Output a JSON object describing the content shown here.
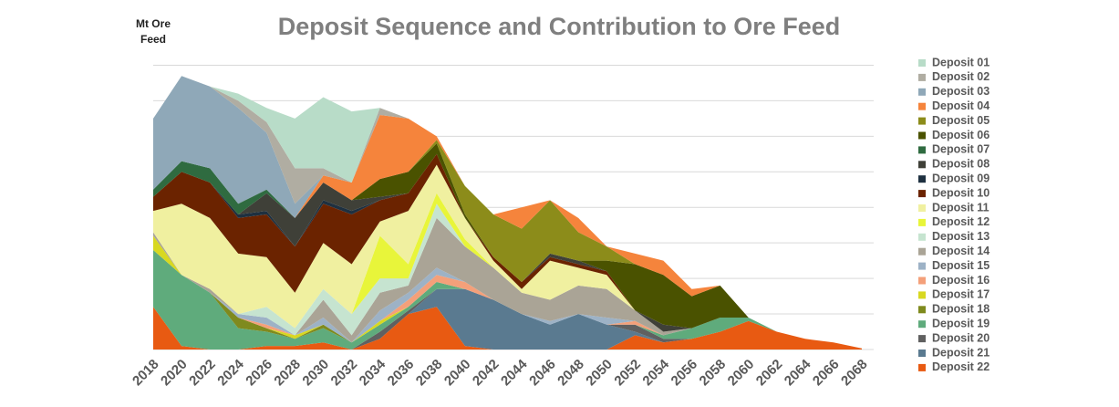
{
  "chart_data": {
    "type": "stacked_area",
    "title": "Deposit Sequence and Contribution to Ore Feed",
    "y_label": "Mt Ore Feed",
    "categories": [
      "2018",
      "2020",
      "2022",
      "2024",
      "2026",
      "2028",
      "2030",
      "2032",
      "2034",
      "2036",
      "2038",
      "2040",
      "2042",
      "2044",
      "2046",
      "2048",
      "2050",
      "2052",
      "2054",
      "2056",
      "2058",
      "2060",
      "2062",
      "2064",
      "2066",
      "2068"
    ],
    "ylim": [
      0,
      85
    ],
    "yticks": [
      0,
      10,
      20,
      30,
      40,
      50,
      60,
      70,
      80
    ],
    "grid": true,
    "legend": "right",
    "series": [
      {
        "name": "Deposit 01",
        "color": "#b8dcc8",
        "values": [
          0,
          0,
          0,
          2,
          4,
          14,
          20,
          20,
          0,
          0,
          0,
          0,
          0,
          0,
          0,
          0,
          0,
          0,
          0,
          0,
          0,
          0,
          0,
          0,
          0,
          0
        ]
      },
      {
        "name": "Deposit 02",
        "color": "#b0ada2",
        "values": [
          0,
          0,
          0,
          2,
          3,
          10,
          2,
          0,
          2,
          0,
          0,
          0,
          0,
          0,
          0,
          0,
          0,
          0,
          0,
          0,
          0,
          0,
          0,
          0,
          0,
          0
        ]
      },
      {
        "name": "Deposit 03",
        "color": "#8fa8b8",
        "values": [
          20,
          24,
          23,
          27,
          16,
          4,
          0,
          0,
          0,
          0,
          0,
          0,
          0,
          0,
          0,
          0,
          0,
          0,
          0,
          0,
          0,
          0,
          0,
          0,
          0,
          0
        ]
      },
      {
        "name": "Deposit 04",
        "color": "#f5843c",
        "values": [
          0,
          0,
          0,
          0,
          0,
          0,
          2,
          5,
          18,
          15,
          1,
          0,
          0,
          6,
          0,
          4,
          0,
          3,
          4,
          2,
          0,
          0,
          0,
          0,
          0,
          0
        ]
      },
      {
        "name": "Deposit 05",
        "color": "#8c8c1a",
        "values": [
          0,
          0,
          0,
          0,
          0,
          0,
          0,
          0,
          0,
          0,
          1,
          8,
          12,
          15,
          15,
          8,
          4,
          0,
          0,
          0,
          0,
          0,
          0,
          0,
          0,
          0
        ]
      },
      {
        "name": "Deposit 06",
        "color": "#4a5200",
        "values": [
          0,
          0,
          0,
          0,
          0,
          0,
          0,
          0,
          5,
          6,
          3,
          1,
          0,
          0,
          0,
          0,
          3,
          13,
          14,
          9,
          9,
          0,
          0,
          0,
          0,
          0
        ]
      },
      {
        "name": "Deposit 07",
        "color": "#2f6b40",
        "values": [
          2,
          3,
          4,
          3,
          1,
          0,
          0,
          0,
          0,
          0,
          0,
          0,
          0,
          0,
          0,
          0,
          0,
          0,
          0,
          0,
          0,
          0,
          0,
          0,
          0,
          0
        ]
      },
      {
        "name": "Deposit 08",
        "color": "#3f4038",
        "values": [
          0,
          0,
          0,
          0,
          5,
          8,
          5,
          3,
          1,
          0,
          0,
          0,
          0,
          0,
          1,
          1,
          0,
          0,
          2,
          0,
          0,
          0,
          0,
          0,
          0,
          0
        ]
      },
      {
        "name": "Deposit 09",
        "color": "#1e3040",
        "values": [
          0,
          0,
          0,
          1,
          1,
          0,
          1,
          1,
          0,
          0,
          0,
          0,
          0,
          0,
          0,
          0,
          0,
          0,
          0,
          0,
          0,
          0,
          0,
          0,
          0,
          0
        ]
      },
      {
        "name": "Deposit 10",
        "color": "#6b2300",
        "values": [
          4,
          9,
          10,
          10,
          12,
          13,
          11,
          14,
          6,
          5,
          3,
          0,
          1,
          2,
          1,
          1,
          1,
          0,
          0,
          0,
          0,
          0,
          0,
          0,
          0,
          0
        ]
      },
      {
        "name": "Deposit 11",
        "color": "#f0f0a0",
        "values": [
          6,
          20,
          20,
          17,
          14,
          10,
          13,
          14,
          4,
          15,
          8,
          6,
          2,
          1,
          11,
          5,
          4,
          0,
          0,
          0,
          0,
          0,
          0,
          0,
          0,
          0
        ]
      },
      {
        "name": "Deposit 12",
        "color": "#e8f53a",
        "values": [
          0,
          0,
          0,
          0,
          0,
          0,
          0,
          0,
          12,
          4,
          3,
          2,
          0,
          0,
          0,
          0,
          0,
          0,
          0,
          0,
          0,
          0,
          0,
          0,
          0,
          0
        ]
      },
      {
        "name": "Deposit 13",
        "color": "#c6e4d0",
        "values": [
          0,
          0,
          0,
          0,
          3,
          2,
          3,
          6,
          4,
          2,
          4,
          0,
          0,
          0,
          0,
          0,
          0,
          0,
          0,
          0,
          0,
          0,
          0,
          0,
          0,
          0
        ]
      },
      {
        "name": "Deposit 14",
        "color": "#aaa496",
        "values": [
          1,
          0,
          1,
          0,
          0,
          0,
          5,
          2,
          5,
          2,
          14,
          10,
          9,
          6,
          6,
          8,
          8,
          3,
          1,
          0,
          0,
          0,
          0,
          0,
          0,
          0
        ]
      },
      {
        "name": "Deposit 15",
        "color": "#9db2c6",
        "values": [
          0,
          0,
          0,
          1,
          2,
          0,
          2,
          0,
          3,
          2,
          2,
          0,
          0,
          0,
          1,
          0,
          2,
          0,
          0,
          0,
          0,
          0,
          0,
          0,
          0,
          0
        ]
      },
      {
        "name": "Deposit 16",
        "color": "#f4a07a",
        "values": [
          0,
          0,
          0,
          0,
          1,
          0,
          0,
          0,
          0,
          2,
          2,
          2,
          0,
          0,
          0,
          0,
          0,
          1,
          0,
          0,
          0,
          0,
          0,
          0,
          0,
          0
        ]
      },
      {
        "name": "Deposit 17",
        "color": "#d8d820",
        "values": [
          4,
          0,
          0,
          0,
          0,
          1,
          0,
          0,
          1,
          0,
          0,
          0,
          0,
          0,
          0,
          0,
          0,
          0,
          0,
          0,
          0,
          0,
          0,
          0,
          0,
          0
        ]
      },
      {
        "name": "Deposit 18",
        "color": "#7f8a1e",
        "values": [
          0,
          0,
          0,
          3,
          1,
          0,
          1,
          0,
          0,
          0,
          0,
          0,
          0,
          0,
          0,
          0,
          0,
          0,
          0,
          0,
          0,
          0,
          0,
          0,
          0,
          0
        ]
      },
      {
        "name": "Deposit 19",
        "color": "#5fab7c",
        "values": [
          16,
          20,
          16,
          6,
          4,
          2,
          4,
          2,
          2,
          1,
          2,
          0,
          0,
          0,
          0,
          0,
          0,
          0,
          1,
          3,
          4,
          1,
          0,
          0,
          0,
          0
        ]
      },
      {
        "name": "Deposit 20",
        "color": "#606060",
        "values": [
          0,
          0,
          0,
          0,
          0,
          0,
          0,
          0,
          2,
          1,
          0,
          0,
          0,
          0,
          0,
          0,
          0,
          2,
          1,
          0,
          0,
          0,
          0,
          0,
          0,
          0
        ]
      },
      {
        "name": "Deposit 21",
        "color": "#5a7a90",
        "values": [
          0,
          0,
          0,
          0,
          0,
          0,
          0,
          0,
          0,
          0,
          5,
          16,
          14,
          10,
          7,
          10,
          7,
          1,
          0,
          0,
          0,
          0,
          0,
          0,
          0,
          0
        ]
      },
      {
        "name": "Deposit 22",
        "color": "#e85a12",
        "values": [
          12,
          1,
          0,
          0,
          1,
          1,
          2,
          0,
          3,
          10,
          12,
          1,
          0,
          0,
          0,
          0,
          0,
          4,
          2,
          3,
          5,
          8,
          5,
          3,
          2,
          0.3
        ]
      }
    ]
  }
}
